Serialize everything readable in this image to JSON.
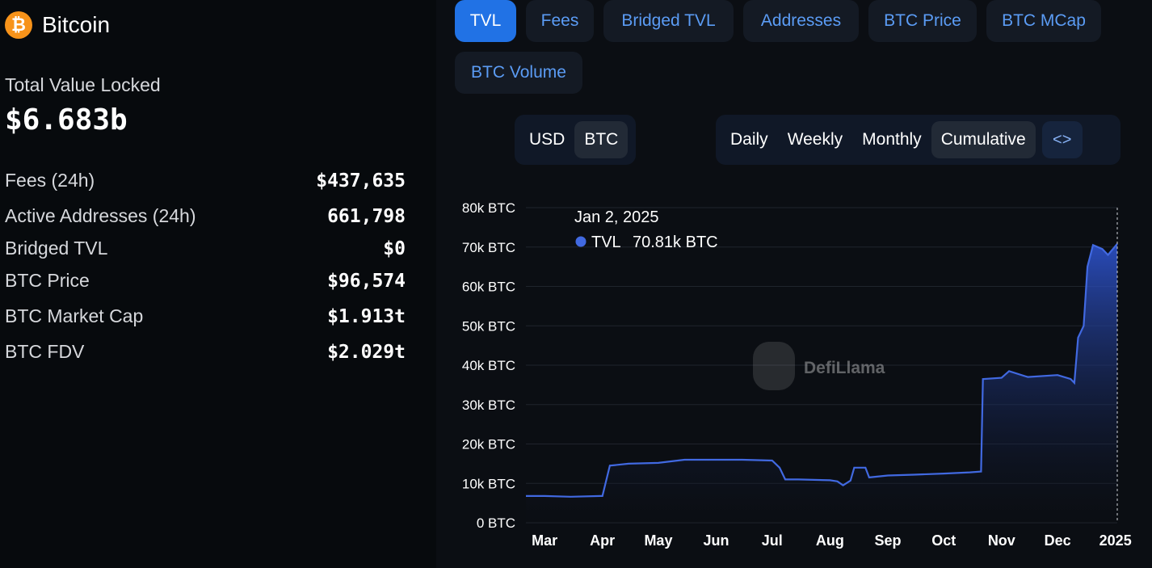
{
  "chain": {
    "name": "Bitcoin",
    "logo_glyph": "₿",
    "logo_color": "#f7931a"
  },
  "summary": {
    "tvl_label": "Total Value Locked",
    "tvl_value": "$6.683b",
    "stats": [
      {
        "label": "Fees (24h)",
        "value": "$437,635"
      },
      {
        "label": "Active Addresses (24h)",
        "value": "661,798"
      },
      {
        "label": "Bridged TVL",
        "value": "$0"
      },
      {
        "label": "BTC Price",
        "value": "$96,574"
      },
      {
        "label": "BTC Market Cap",
        "value": "$1.913t"
      },
      {
        "label": "BTC FDV",
        "value": "$2.029t"
      }
    ]
  },
  "metric_tabs": [
    {
      "label": "TVL",
      "active": true
    },
    {
      "label": "Fees",
      "active": false
    },
    {
      "label": "Bridged TVL",
      "active": false
    },
    {
      "label": "Addresses",
      "active": false
    },
    {
      "label": "BTC Price",
      "active": false
    },
    {
      "label": "BTC MCap",
      "active": false
    },
    {
      "label": "BTC Volume",
      "active": false
    }
  ],
  "denomination": {
    "options": [
      "USD",
      "BTC"
    ],
    "selected": "BTC"
  },
  "period": {
    "options": [
      "Daily",
      "Weekly",
      "Monthly",
      "Cumulative"
    ],
    "selected": "Cumulative",
    "embed_icon": "code-icon",
    "embed_glyph": "<>"
  },
  "accent_color": "#2172e5",
  "line_color": "#4169e1",
  "watermark": "DefiLlama",
  "tooltip": {
    "date": "Jan 2, 2025",
    "series": "TVL",
    "value": "70.81k BTC"
  },
  "chart_data": {
    "type": "area",
    "series_name": "TVL",
    "unit": "BTC",
    "y_ticks": [
      "0 BTC",
      "10k BTC",
      "20k BTC",
      "30k BTC",
      "40k BTC",
      "50k BTC",
      "60k BTC",
      "70k BTC",
      "80k BTC"
    ],
    "ylim": [
      0,
      80000
    ],
    "x_ticks": [
      "Mar",
      "Apr",
      "May",
      "Jun",
      "Jul",
      "Aug",
      "Sep",
      "Oct",
      "Nov",
      "Dec",
      "2025"
    ],
    "grid": true,
    "x": [
      "2024-02-20",
      "2024-03-01",
      "2024-03-15",
      "2024-03-31",
      "2024-04-01",
      "2024-04-05",
      "2024-04-15",
      "2024-05-01",
      "2024-05-15",
      "2024-06-01",
      "2024-06-15",
      "2024-07-01",
      "2024-07-05",
      "2024-07-08",
      "2024-07-15",
      "2024-08-01",
      "2024-08-05",
      "2024-08-08",
      "2024-08-12",
      "2024-08-14",
      "2024-08-20",
      "2024-08-22",
      "2024-09-01",
      "2024-09-15",
      "2024-10-01",
      "2024-10-15",
      "2024-10-21",
      "2024-10-22",
      "2024-11-01",
      "2024-11-05",
      "2024-11-15",
      "2024-12-01",
      "2024-12-08",
      "2024-12-10",
      "2024-12-12",
      "2024-12-15",
      "2024-12-17",
      "2024-12-20",
      "2024-12-25",
      "2024-12-28",
      "2025-01-02"
    ],
    "values": [
      6800,
      6800,
      6600,
      6800,
      6800,
      14500,
      15000,
      15200,
      16000,
      16000,
      16000,
      15800,
      14000,
      11000,
      11000,
      10800,
      10500,
      9500,
      10700,
      14000,
      14000,
      11500,
      12000,
      12200,
      12500,
      12800,
      13000,
      36500,
      36800,
      38500,
      37000,
      37500,
      36500,
      35500,
      47000,
      50000,
      65000,
      70500,
      69500,
      68000,
      70810
    ]
  }
}
